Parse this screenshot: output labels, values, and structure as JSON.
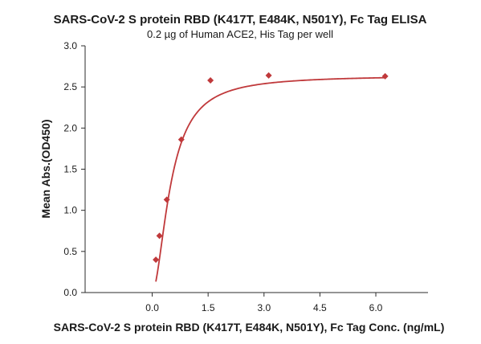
{
  "chart_data": {
    "type": "scatter",
    "title": "SARS-CoV-2 S protein RBD (K417T, E484K, N501Y), Fc Tag ELISA",
    "subtitle": "0.2 µg of Human ACE2, His Tag per well",
    "xlabel": "SARS-CoV-2 S protein RBD (K417T, E484K, N501Y), Fc Tag Conc. (ng/mL)",
    "ylabel": "Mean Abs.(OD450)",
    "xlim": [
      -1.8,
      7.4
    ],
    "ylim": [
      0,
      3.0
    ],
    "x_ticks": [
      0.0,
      1.5,
      3.0,
      4.5,
      6.0
    ],
    "x_tick_labels": [
      "0.0",
      "1.5",
      "3.0",
      "4.5",
      "6.0"
    ],
    "y_ticks": [
      0.0,
      0.5,
      1.0,
      1.5,
      2.0,
      2.5,
      3.0
    ],
    "y_tick_labels": [
      "0.0",
      "0.5",
      "1.0",
      "1.5",
      "2.0",
      "2.5",
      "3.0"
    ],
    "grid": false,
    "legend": "none",
    "marker": "diamond",
    "color": "#c0393b",
    "series": [
      {
        "points": [
          {
            "x": 0.098,
            "y": 0.4
          },
          {
            "x": 0.195,
            "y": 0.69
          },
          {
            "x": 0.391,
            "y": 1.13
          },
          {
            "x": 0.781,
            "y": 1.86
          },
          {
            "x": 1.563,
            "y": 2.58
          },
          {
            "x": 3.125,
            "y": 2.64
          },
          {
            "x": 6.25,
            "y": 2.63
          }
        ]
      }
    ],
    "fit_curve": {
      "type": "4PL",
      "bottom": 0.0,
      "top": 2.64,
      "ec50": 0.5,
      "hill": 1.8,
      "x_range": [
        0.098,
        6.25
      ]
    }
  }
}
